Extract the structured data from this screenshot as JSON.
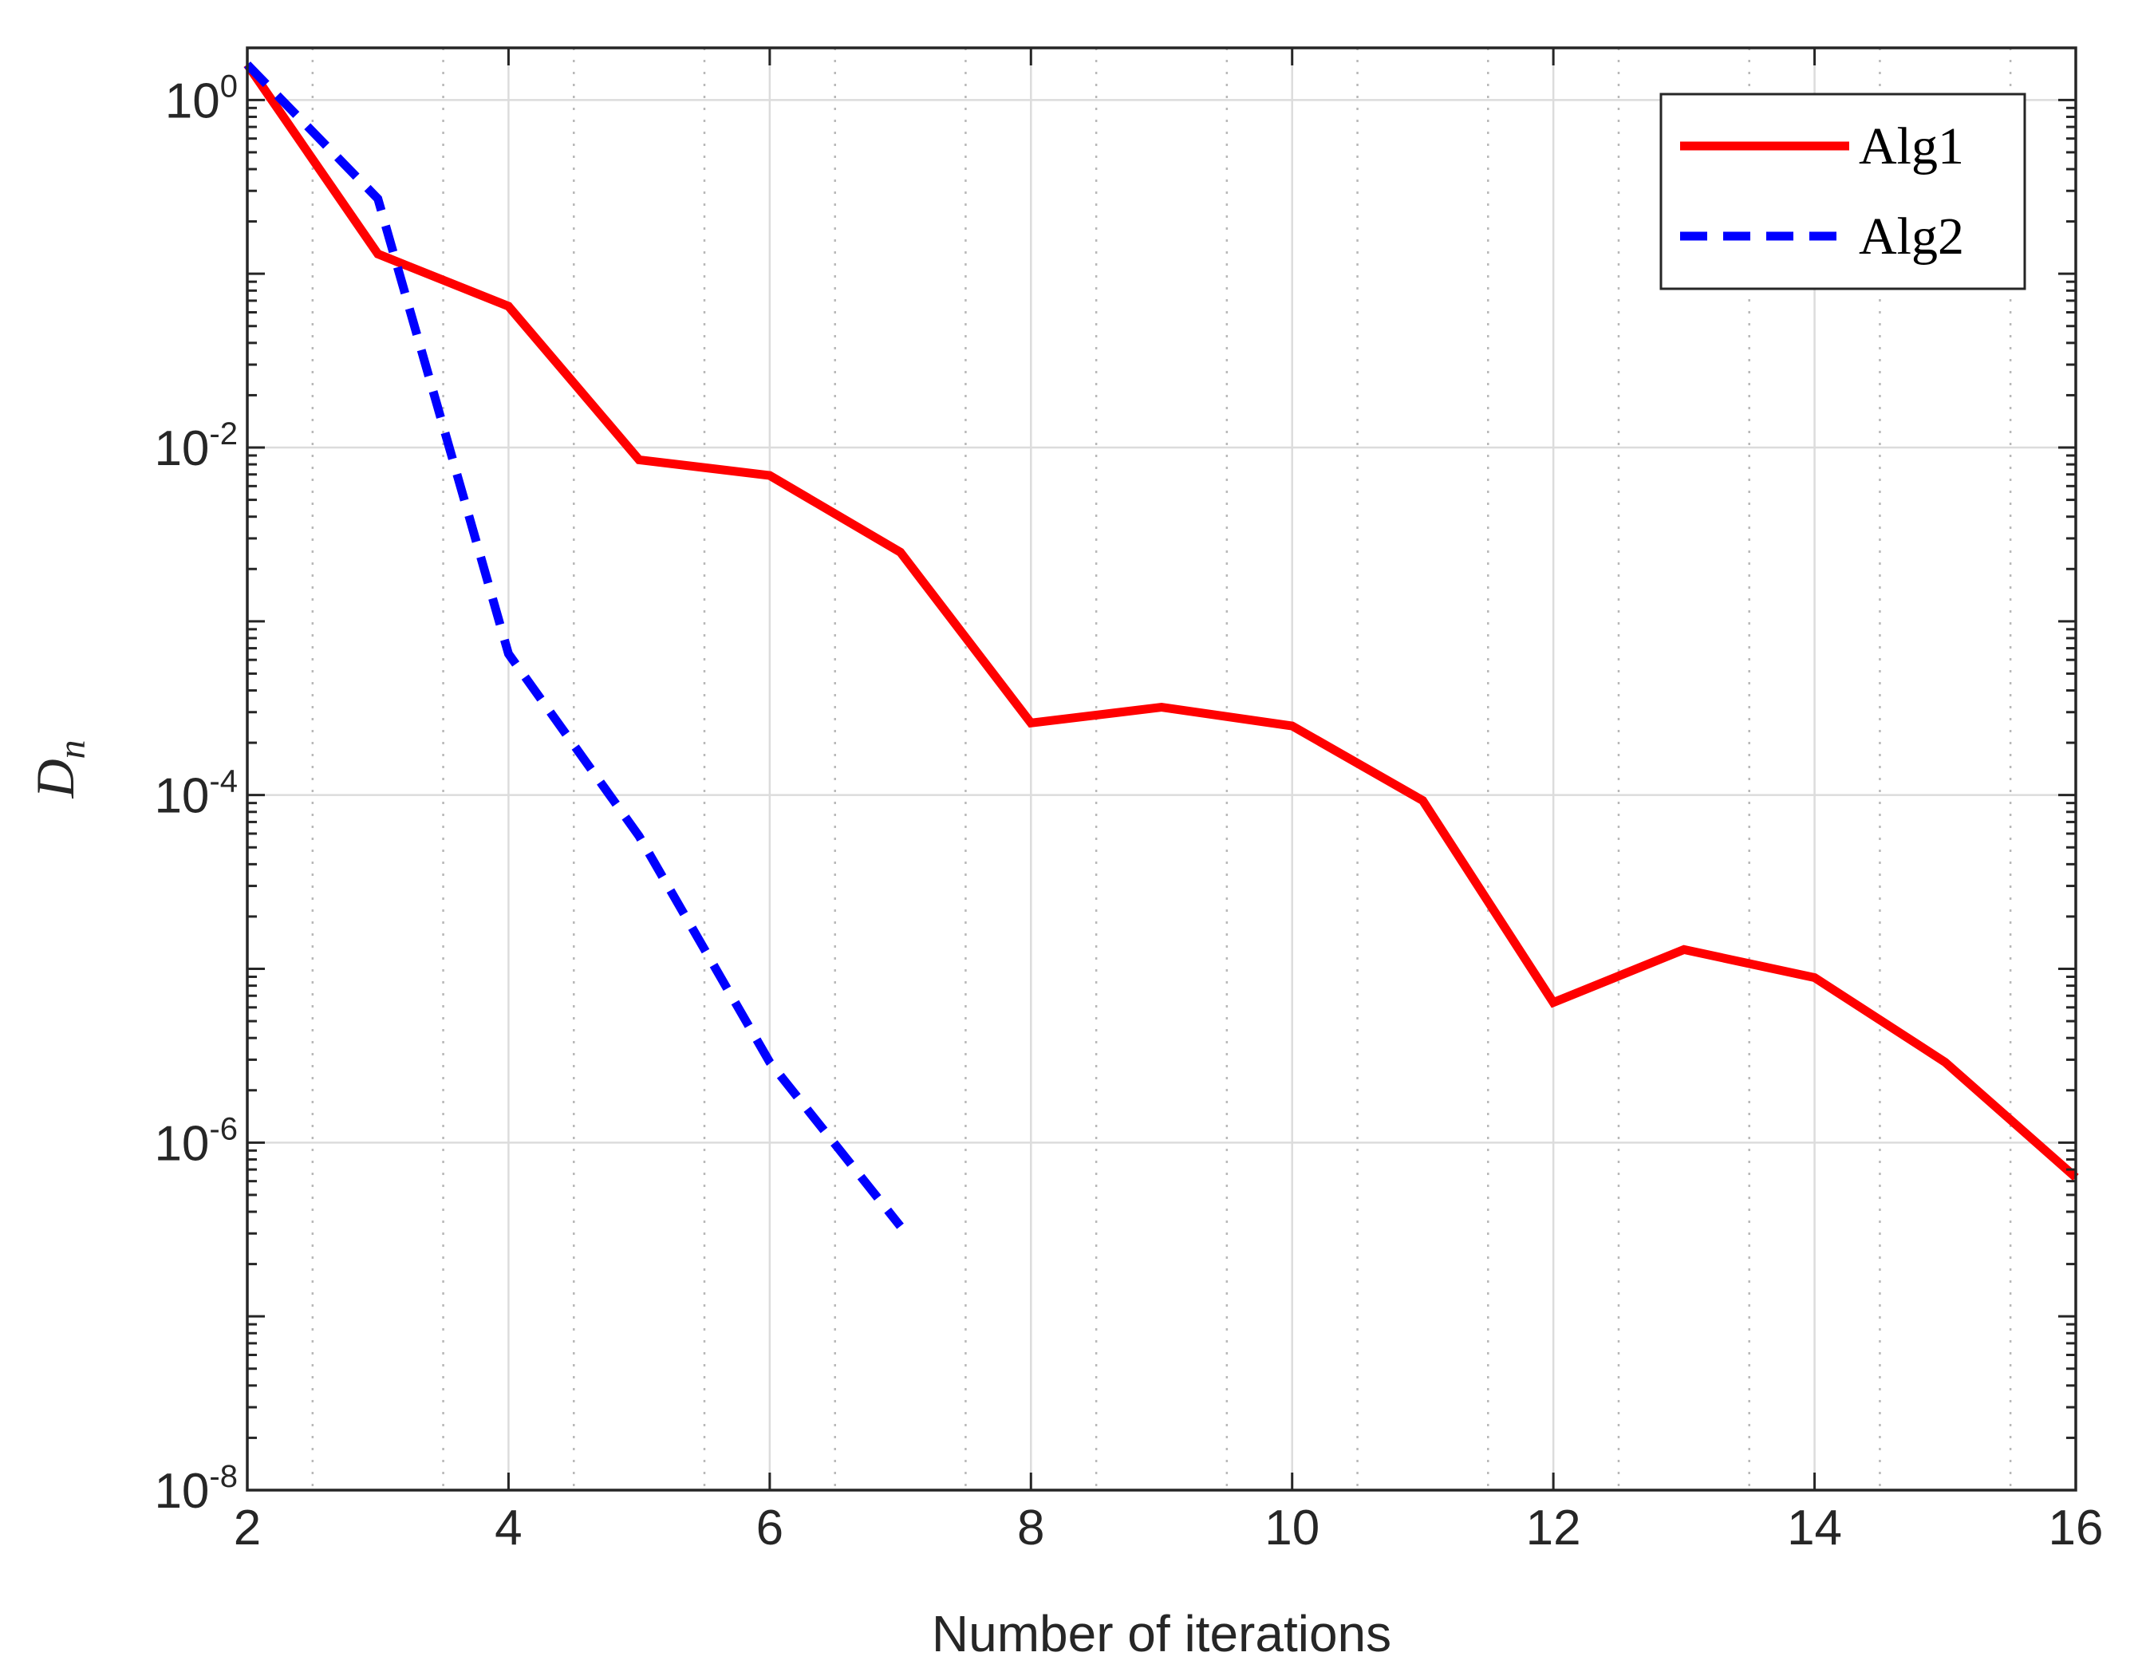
{
  "chart_data": {
    "type": "line",
    "title": "",
    "xlabel": "Number of iterations",
    "ylabel": "D",
    "ylabel_subscript": "n",
    "xlim": [
      2,
      16
    ],
    "ylim_exponents": [
      -8,
      0.3
    ],
    "y_scale": "log",
    "grid": true,
    "x_ticks": [
      2,
      4,
      6,
      8,
      10,
      12,
      14,
      16
    ],
    "y_ticks": [
      {
        "base": "10",
        "exp": "-8",
        "value": -8
      },
      {
        "base": "10",
        "exp": "-6",
        "value": -6
      },
      {
        "base": "10",
        "exp": "-4",
        "value": -4
      },
      {
        "base": "10",
        "exp": "-2",
        "value": -2
      },
      {
        "base": "10",
        "exp": "0",
        "value": 0
      }
    ],
    "legend_position": "top-right",
    "series": [
      {
        "name": "Alg1",
        "color": "#ff0000",
        "style": "solid",
        "x": [
          2,
          3,
          4,
          5,
          6,
          7,
          8,
          9,
          10,
          11,
          12,
          13,
          14,
          15,
          16
        ],
        "y": [
          1.6,
          0.13,
          0.065,
          0.0085,
          0.0069,
          0.0025,
          0.00026,
          0.00032,
          0.00025,
          9.3e-05,
          6.4e-06,
          1.29e-05,
          8.9e-06,
          2.9e-06,
          6.3e-07
        ]
      },
      {
        "name": "Alg2",
        "color": "#0000ff",
        "style": "dashed",
        "x": [
          2,
          3,
          4,
          5,
          6,
          7
        ],
        "y": [
          1.6,
          0.27,
          0.00065,
          5.8e-05,
          2.9e-06,
          3.3e-07
        ]
      }
    ]
  }
}
